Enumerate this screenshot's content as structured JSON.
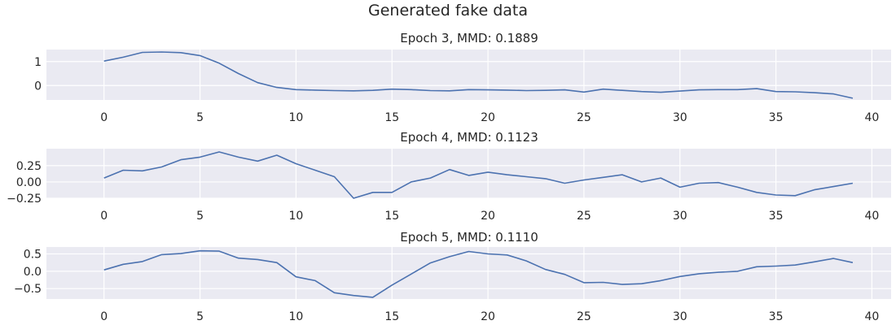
{
  "chart_data": {
    "suptitle": "Generated fake data",
    "colors": {
      "line": "#4c72b0",
      "axes_bg": "#eaeaf2",
      "grid": "#ffffff",
      "text": "#262626"
    },
    "subplots": [
      {
        "type": "line",
        "title": "Epoch 3, MMD: 0.1889",
        "xlim": [
          -3,
          41
        ],
        "ylim": [
          -0.6,
          1.5
        ],
        "xticks": [
          0,
          5,
          10,
          15,
          20,
          25,
          30,
          35,
          40
        ],
        "xtick_labels": [
          "0",
          "5",
          "10",
          "15",
          "20",
          "25",
          "30",
          "35",
          "40"
        ],
        "yticks": [
          0,
          1
        ],
        "ytick_labels": [
          "0",
          "1"
        ],
        "y": [
          1.02,
          1.18,
          1.38,
          1.4,
          1.37,
          1.25,
          0.93,
          0.5,
          0.12,
          -0.08,
          -0.17,
          -0.19,
          -0.21,
          -0.22,
          -0.2,
          -0.15,
          -0.17,
          -0.21,
          -0.22,
          -0.17,
          -0.18,
          -0.19,
          -0.21,
          -0.2,
          -0.18,
          -0.27,
          -0.15,
          -0.2,
          -0.25,
          -0.28,
          -0.23,
          -0.18,
          -0.17,
          -0.17,
          -0.13,
          -0.25,
          -0.26,
          -0.3,
          -0.35,
          -0.53
        ]
      },
      {
        "type": "line",
        "title": "Epoch 4, MMD: 0.1123",
        "xlim": [
          -3,
          41
        ],
        "ylim": [
          -0.25,
          0.51
        ],
        "xticks": [
          0,
          5,
          10,
          15,
          20,
          25,
          30,
          35,
          40
        ],
        "xtick_labels": [
          "0",
          "5",
          "10",
          "15",
          "20",
          "25",
          "30",
          "35",
          "40"
        ],
        "yticks": [
          -0.25,
          0.0,
          0.25
        ],
        "ytick_labels": [
          "−0.25",
          "0.00",
          "0.25"
        ],
        "y": [
          0.06,
          0.18,
          0.17,
          0.23,
          0.34,
          0.38,
          0.46,
          0.38,
          0.32,
          0.41,
          0.28,
          0.18,
          0.08,
          -0.25,
          -0.16,
          -0.16,
          0.0,
          0.06,
          0.19,
          0.1,
          0.15,
          0.11,
          0.08,
          0.05,
          -0.02,
          0.03,
          0.07,
          0.11,
          0.0,
          0.06,
          -0.08,
          -0.02,
          -0.01,
          -0.08,
          -0.16,
          -0.2,
          -0.21,
          -0.12,
          -0.07,
          -0.02
        ]
      },
      {
        "type": "line",
        "title": "Epoch 5, MMD: 0.1110",
        "xlim": [
          -3,
          41
        ],
        "ylim": [
          -0.8,
          0.7
        ],
        "xticks": [
          0,
          5,
          10,
          15,
          20,
          25,
          30,
          35,
          40
        ],
        "xtick_labels": [
          "0",
          "5",
          "10",
          "15",
          "20",
          "25",
          "30",
          "35",
          "40"
        ],
        "yticks": [
          -0.5,
          0.0,
          0.5
        ],
        "ytick_labels": [
          "−0.5",
          "0.0",
          "0.5"
        ],
        "y": [
          0.04,
          0.2,
          0.28,
          0.48,
          0.51,
          0.59,
          0.58,
          0.38,
          0.34,
          0.25,
          -0.16,
          -0.27,
          -0.62,
          -0.7,
          -0.75,
          -0.4,
          -0.08,
          0.24,
          0.42,
          0.57,
          0.5,
          0.47,
          0.3,
          0.05,
          -0.09,
          -0.33,
          -0.32,
          -0.38,
          -0.36,
          -0.27,
          -0.15,
          -0.07,
          -0.03,
          0.0,
          0.13,
          0.15,
          0.18,
          0.27,
          0.37,
          0.25
        ]
      }
    ]
  }
}
